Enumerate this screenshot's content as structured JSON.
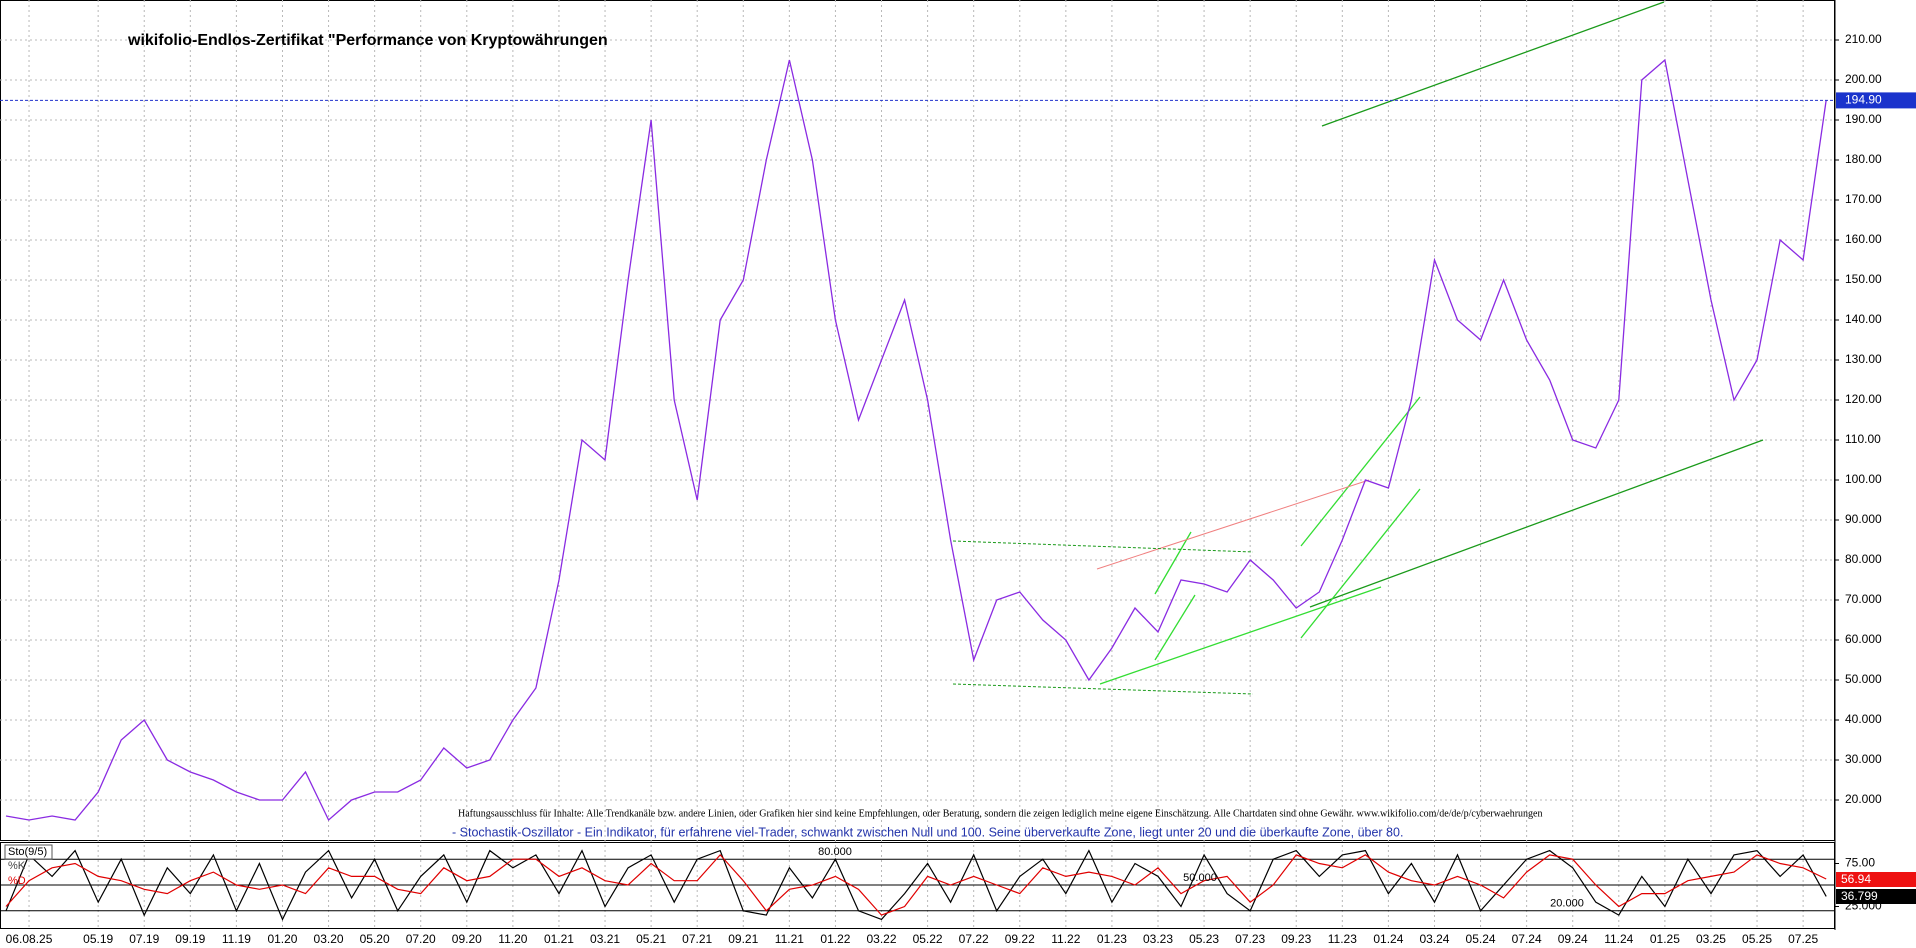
{
  "chart_data": [
    {
      "type": "line",
      "title": "wikifolio-Endlos-Zertifikat \"Performance von Kryptowährungen",
      "annotations": [
        "Haftungsausschluss für Inhalte: Alle Trendkanäle bzw. andere Linien, oder Grafiken hier sind keine Empfehlungen, oder Beratung, sondern die zeigen lediglich meine eigene Einschätzung. Alle Chartdaten sind ohne Gewähr.  www.wikifolio.com/de/de/p/cyberwaehrungen",
        "- Stochastik-Oszillator - Ein Indikator, für erfahrene viel-Trader, schwankt zwischen Null und 100. Seine überverkaufte Zone, liegt unter 20 und die überkaufte Zone, über 80."
      ],
      "categories": [
        null,
        "06.08.25",
        null,
        null,
        "05.19",
        null,
        "07.19",
        null,
        "09.19",
        null,
        "11.19",
        null,
        "01.20",
        null,
        "03.20",
        null,
        "05.20",
        null,
        "07.20",
        null,
        "09.20",
        null,
        "11.20",
        null,
        "01.21",
        null,
        "03.21",
        null,
        "05.21",
        null,
        "07.21",
        null,
        "09.21",
        null,
        "11.21",
        null,
        "01.22",
        null,
        "03.22",
        null,
        "05.22",
        null,
        "07.22",
        null,
        "09.22",
        null,
        "11.22",
        null,
        "01.23",
        null,
        "03.23",
        null,
        "05.23",
        null,
        "07.23",
        null,
        "09.23",
        null,
        "11.23",
        null,
        "01.24",
        null,
        "03.24",
        null,
        "05.24",
        null,
        "07.24",
        null,
        "09.24",
        null,
        "11.24",
        null,
        "01.25",
        null,
        "03.25",
        null,
        "05.25",
        null,
        "07.25",
        null
      ],
      "values": [
        16,
        15,
        16,
        15,
        22,
        35,
        40,
        30,
        27,
        25,
        22,
        20,
        20,
        27,
        15,
        20,
        22,
        22,
        25,
        33,
        28,
        30,
        40,
        48,
        75,
        110,
        105,
        150,
        190,
        120,
        95,
        140,
        150,
        180,
        205,
        180,
        140,
        115,
        130,
        145,
        120,
        85,
        55,
        70,
        72,
        65,
        60,
        50,
        58,
        68,
        62,
        75,
        74,
        72,
        80,
        75,
        68,
        72,
        85,
        100,
        98,
        120,
        155,
        140,
        135,
        150,
        135,
        125,
        110,
        108,
        120,
        200,
        205,
        175,
        145,
        120,
        130,
        160,
        155,
        195
      ],
      "color": "#8a2be2",
      "ylim": [
        10,
        220
      ],
      "yticks": [
        {
          "value": 20,
          "label": "20.000"
        },
        {
          "value": 30,
          "label": "30.000"
        },
        {
          "value": 40,
          "label": "40.000"
        },
        {
          "value": 50,
          "label": "50.000"
        },
        {
          "value": 60,
          "label": "60.000"
        },
        {
          "value": 70,
          "label": "70.000"
        },
        {
          "value": 80,
          "label": "80.000"
        },
        {
          "value": 90,
          "label": "90.000"
        },
        {
          "value": 100,
          "label": "100.00"
        },
        {
          "value": 110,
          "label": "110.00"
        },
        {
          "value": 120,
          "label": "120.00"
        },
        {
          "value": 130,
          "label": "130.00"
        },
        {
          "value": 140,
          "label": "140.00"
        },
        {
          "value": 150,
          "label": "150.00"
        },
        {
          "value": 160,
          "label": "160.00"
        },
        {
          "value": 170,
          "label": "170.00"
        },
        {
          "value": 180,
          "label": "180.00"
        },
        {
          "value": 190,
          "label": "190.00"
        },
        {
          "value": 200,
          "label": "200.00"
        },
        {
          "value": 210,
          "label": "210.00"
        }
      ],
      "last_price": {
        "value": 194.9,
        "label": "194.90"
      },
      "grid": true
    },
    {
      "type": "line",
      "title": "Sto(9/5)",
      "series": [
        {
          "name": "%K",
          "color": "#000000",
          "values": [
            20,
            85,
            60,
            90,
            30,
            80,
            15,
            70,
            40,
            85,
            20,
            75,
            10,
            65,
            90,
            35,
            80,
            20,
            60,
            85,
            30,
            90,
            70,
            85,
            40,
            90,
            25,
            70,
            85,
            30,
            80,
            90,
            20,
            15,
            70,
            35,
            80,
            20,
            10,
            40,
            75,
            30,
            85,
            20,
            60,
            80,
            40,
            90,
            30,
            75,
            60,
            25,
            85,
            40,
            20,
            80,
            90,
            60,
            85,
            90,
            40,
            75,
            30,
            85,
            20,
            50,
            80,
            90,
            70,
            30,
            15,
            60,
            25,
            80,
            40,
            85,
            90,
            60,
            85,
            36.799
          ]
        },
        {
          "name": "%D",
          "color": "#e00000",
          "values": [
            25,
            55,
            70,
            75,
            60,
            55,
            45,
            40,
            55,
            65,
            50,
            45,
            50,
            40,
            70,
            60,
            60,
            45,
            40,
            70,
            55,
            60,
            80,
            80,
            60,
            70,
            55,
            50,
            75,
            55,
            55,
            85,
            55,
            20,
            45,
            50,
            60,
            45,
            15,
            25,
            60,
            50,
            60,
            50,
            40,
            70,
            60,
            65,
            60,
            50,
            70,
            40,
            55,
            60,
            30,
            50,
            85,
            75,
            70,
            85,
            65,
            55,
            50,
            60,
            50,
            35,
            65,
            85,
            80,
            50,
            25,
            40,
            40,
            55,
            60,
            65,
            85,
            75,
            70,
            56.94
          ]
        }
      ],
      "ylim": [
        0,
        100
      ],
      "yticks": [
        {
          "value": 75,
          "label": "75.00"
        },
        {
          "value": 25,
          "label": "25.000"
        }
      ],
      "levels": [
        {
          "value": 80,
          "label": "80.000"
        },
        {
          "value": 50,
          "label": "50.000"
        },
        {
          "value": 20,
          "label": "20.000"
        }
      ]
    }
  ]
}
